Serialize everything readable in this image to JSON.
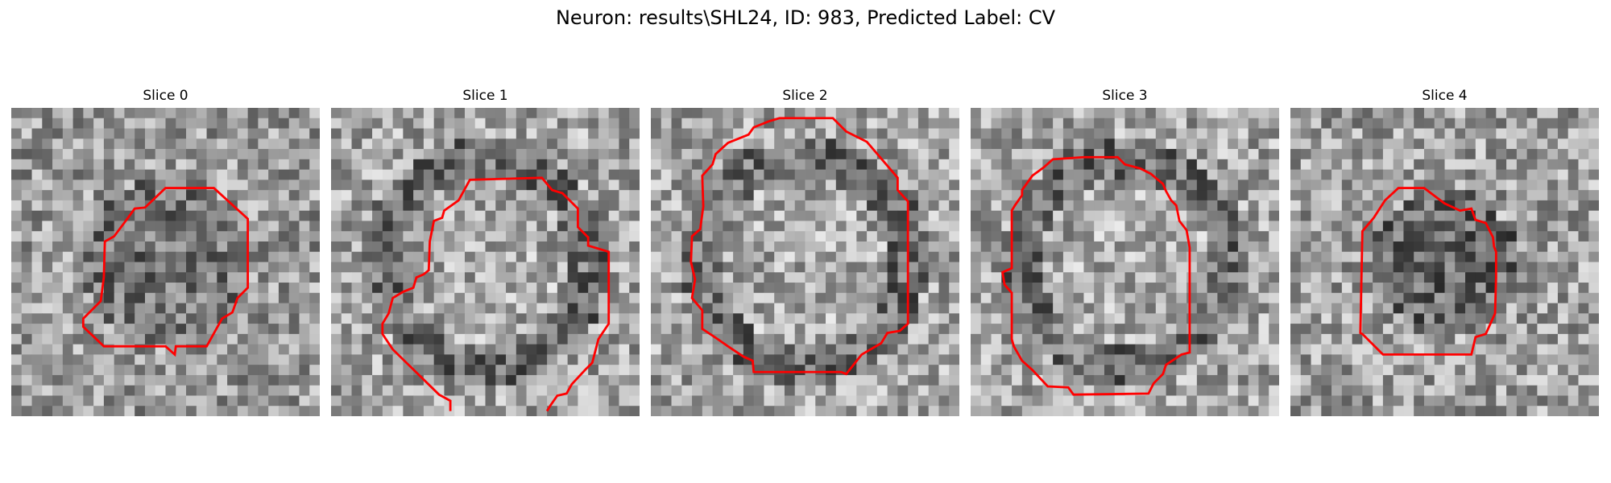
{
  "figure": {
    "title": "Neuron: results\\SHL24, ID: 983, Predicted Label: CV"
  },
  "panels": [
    {
      "title": "Slice 0",
      "seed": 11,
      "contour_icon": "red-contour-outline",
      "tone": "mixed-dark-center"
    },
    {
      "title": "Slice 1",
      "seed": 23,
      "contour_icon": "red-contour-outline",
      "tone": "dark-ring-light-center"
    },
    {
      "title": "Slice 2",
      "seed": 37,
      "contour_icon": "red-contour-outline",
      "tone": "dark-ring-light-center"
    },
    {
      "title": "Slice 3",
      "seed": 51,
      "contour_icon": "red-contour-outline",
      "tone": "dark-ring-light-center"
    },
    {
      "title": "Slice 4",
      "seed": 67,
      "contour_icon": "red-contour-outline",
      "tone": "dark-center"
    }
  ],
  "colors": {
    "contour": "#ff0000",
    "background": "#ffffff"
  }
}
